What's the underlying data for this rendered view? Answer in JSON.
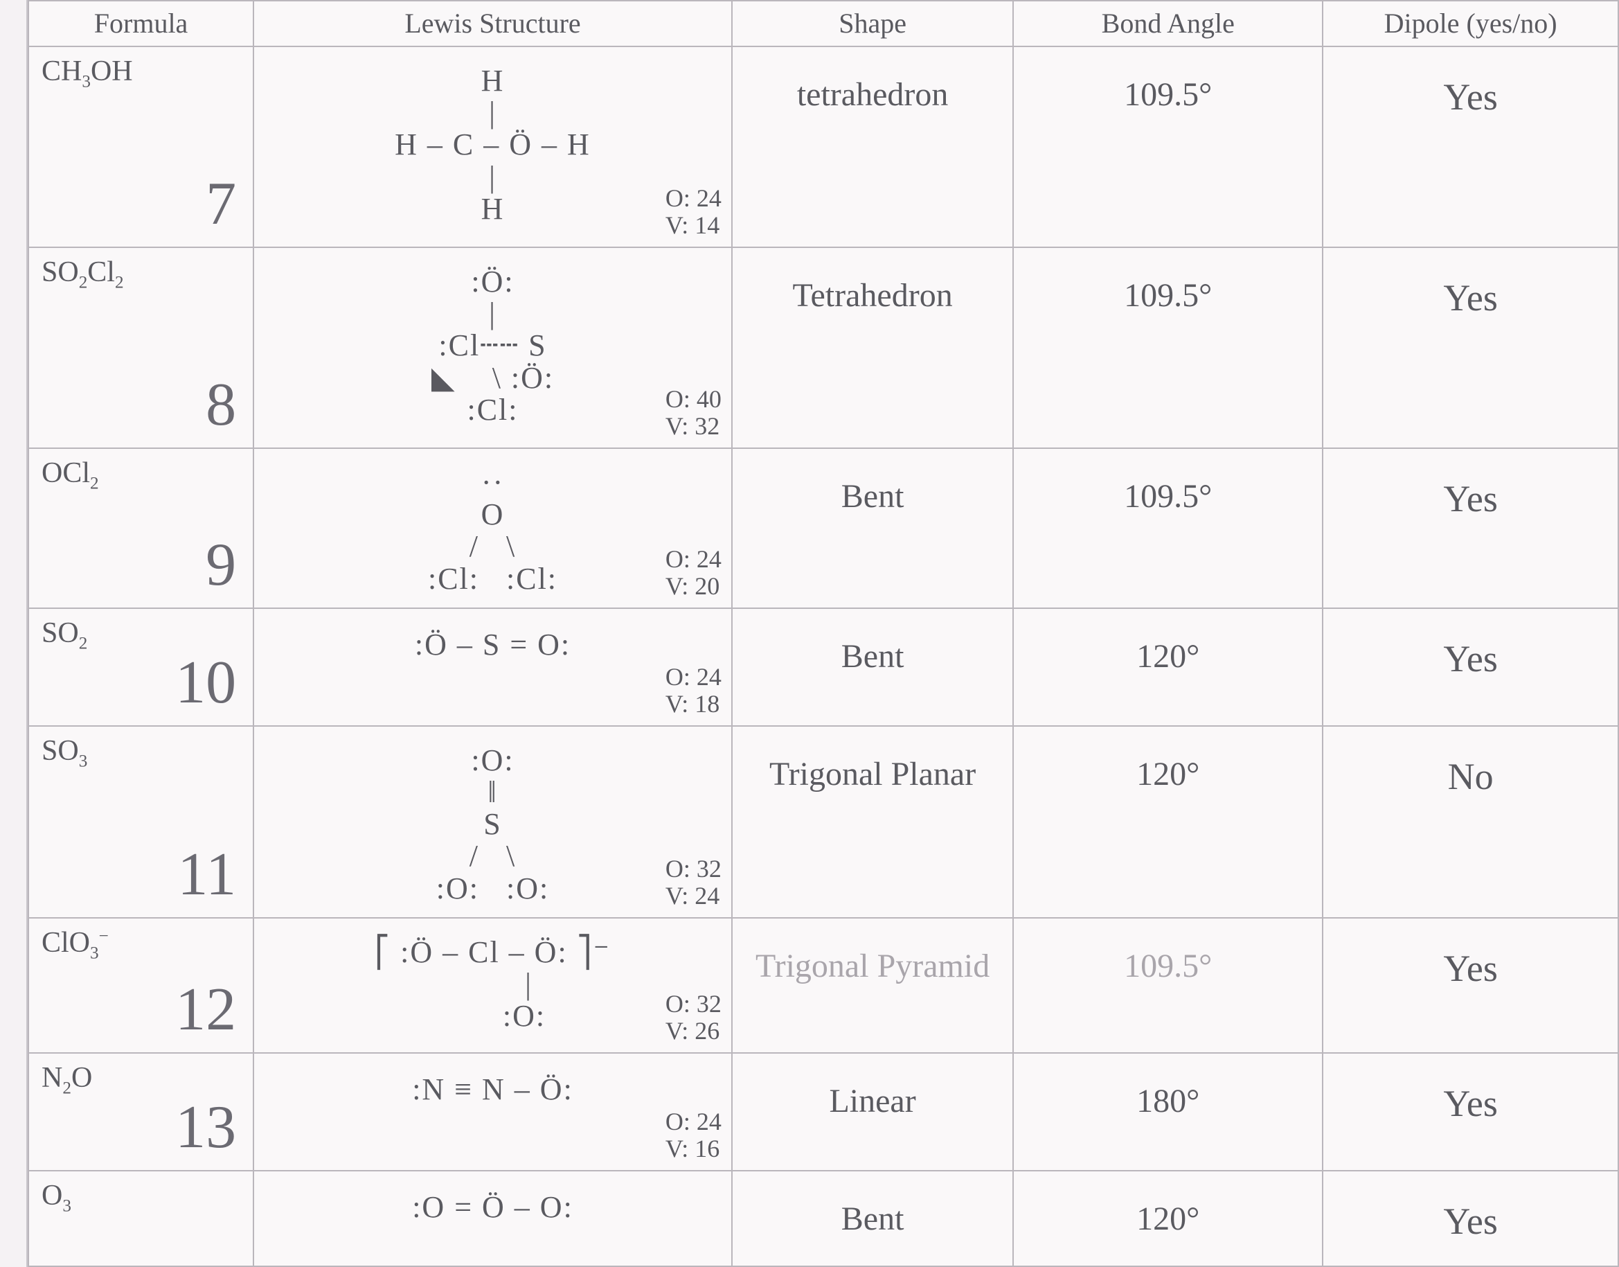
{
  "colors": {
    "page_bg": "#f5f2f4",
    "sheet_bg": "#faf8f9",
    "border": "#bab6bc",
    "text": "#5a5a60",
    "faint_text": "#a9a5ab"
  },
  "headers": {
    "formula": "Formula",
    "lewis": "Lewis Structure",
    "shape": "Shape",
    "angle": "Bond Angle",
    "dipole": "Dipole (yes/no)"
  },
  "rows": [
    {
      "num": "7",
      "formula_html": "CH<sub class='chem'>3</sub>OH",
      "lewis_lines": [
        "H",
        "|",
        "H – C – Ö – H",
        "|",
        "H"
      ],
      "O": "O: 24",
      "V": "V: 14",
      "shape": "tetrahedron",
      "angle": "109.5°",
      "dipole": "Yes",
      "row_class": "row-h-tall"
    },
    {
      "num": "8",
      "formula_html": "SO<sub class='chem'>2</sub>Cl<sub class='chem'>2</sub>",
      "lewis_lines": [
        ":Ö:",
        "|",
        ":Cl┄┄ S",
        "◣    \\ :Ö:",
        ":Cl:"
      ],
      "O": "O: 40",
      "V": "V: 32",
      "shape": "Tetrahedron",
      "angle": "109.5°",
      "dipole": "Yes",
      "row_class": "row-h-tall"
    },
    {
      "num": "9",
      "formula_html": "OCl<sub class='chem'>2</sub>",
      "lewis_lines": [
        "··",
        "O",
        "/   \\",
        ":Cl:   :Cl:"
      ],
      "O": "O: 24",
      "V": "V: 20",
      "shape": "Bent",
      "angle": "109.5°",
      "dipole": "Yes",
      "row_class": "row-h-med"
    },
    {
      "num": "10",
      "formula_html": "SO<sub class='chem'>2</sub>",
      "lewis_lines": [
        ":Ö – S = O:"
      ],
      "O": "O: 24",
      "V": "V: 18",
      "shape": "Bent",
      "angle": "120°",
      "dipole": "Yes",
      "row_class": "row-h-medsm"
    },
    {
      "num": "11",
      "formula_html": "SO<sub class='chem'>3</sub>",
      "lewis_lines": [
        ":O:",
        "‖",
        "S",
        "/   \\",
        ":O:   :O:"
      ],
      "O": "O: 32",
      "V": "V: 24",
      "shape": "Trigonal Planar",
      "angle": "120°",
      "dipole": "No",
      "row_class": "row-h-med"
    },
    {
      "num": "12",
      "formula_html": "ClO<sub class='chem'>3</sub><sup class='chem'>−</sup>",
      "lewis_lines": [
        "⎡ :Ö – Cl – Ö: ⎤⁻",
        "        |",
        "       :O:"
      ],
      "O": "O: 32",
      "V": "V: 26",
      "shape": "Trigonal Pyramid",
      "shape_faint": true,
      "angle": "109.5°",
      "angle_faint": true,
      "dipole": "Yes",
      "row_class": "row-h-med"
    },
    {
      "num": "13",
      "formula_html": "N<sub class='chem'>2</sub>O",
      "lewis_lines": [
        ":N ≡ N – Ö:"
      ],
      "O": "O: 24",
      "V": "V: 16",
      "shape": "Linear",
      "angle": "180°",
      "dipole": "Yes",
      "row_class": "row-h-medsm"
    },
    {
      "num": "",
      "formula_html": "O<sub class='chem'>3</sub>",
      "lewis_lines": [
        ":O = Ö – O:"
      ],
      "O": "",
      "V": "",
      "shape": "Bent",
      "angle": "120°",
      "dipole": "Yes",
      "row_class": "row-h-short"
    }
  ]
}
